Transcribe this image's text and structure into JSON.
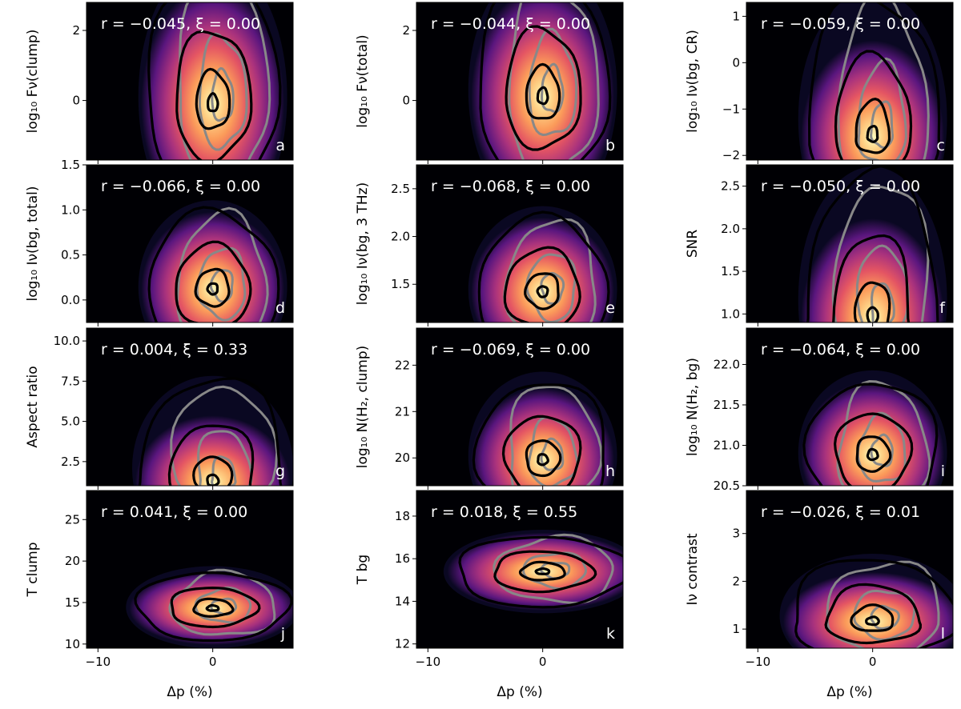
{
  "chart_data": [
    {
      "panel": "a",
      "type": "heatmap",
      "ylabel": "log₁₀ Fν(clump)",
      "stat": "r = −0.045, ξ = 0.00",
      "r": -0.045,
      "xi": 0.0,
      "xlim": [
        -11,
        7
      ],
      "ylim": [
        -1.7,
        2.8
      ],
      "yticks": [
        2,
        0
      ],
      "ytick_labels": [
        "2",
        "0"
      ],
      "peak": [
        0,
        -0.1
      ],
      "spread": [
        2.4,
        1.3
      ],
      "skew": 0.2
    },
    {
      "panel": "b",
      "type": "heatmap",
      "ylabel": "log₁₀ Fν(total)",
      "stat": "r = −0.044, ξ = 0.00",
      "r": -0.044,
      "xi": 0.0,
      "xlim": [
        -11,
        7
      ],
      "ylim": [
        -1.7,
        2.8
      ],
      "yticks": [
        2,
        0
      ],
      "ytick_labels": [
        "2",
        "0"
      ],
      "peak": [
        0,
        0.1
      ],
      "spread": [
        2.4,
        1.2
      ],
      "skew": 0.2
    },
    {
      "panel": "c",
      "type": "heatmap",
      "ylabel": "log₁₀ Iν(bg, CR)",
      "stat": "r = −0.059, ξ = 0.00",
      "r": -0.059,
      "xi": 0.0,
      "xlim": [
        -11,
        7
      ],
      "ylim": [
        -2.1,
        1.3
      ],
      "yticks": [
        1,
        0,
        -1,
        -2
      ],
      "ytick_labels": [
        "1",
        "0",
        "−1",
        "−2"
      ],
      "peak": [
        0,
        -1.6
      ],
      "spread": [
        2.4,
        0.8
      ],
      "skew": 0.6
    },
    {
      "panel": "d",
      "type": "heatmap",
      "ylabel": "log₁₀ Iν(bg, total)",
      "stat": "r = −0.066, ξ = 0.00",
      "r": -0.066,
      "xi": 0.0,
      "xlim": [
        -11,
        7
      ],
      "ylim": [
        -0.25,
        1.5
      ],
      "yticks": [
        1.5,
        1.0,
        0.5,
        0.0
      ],
      "ytick_labels": [
        "1.5",
        "1.0",
        "0.5",
        "0.0"
      ],
      "peak": [
        0,
        0.12
      ],
      "spread": [
        2.4,
        0.33
      ],
      "skew": 0.1
    },
    {
      "panel": "e",
      "type": "heatmap",
      "ylabel": "log₁₀ Iν(bg, 3 THz)",
      "stat": "r = −0.068, ξ = 0.00",
      "r": -0.068,
      "xi": 0.0,
      "xlim": [
        -11,
        7
      ],
      "ylim": [
        1.1,
        2.75
      ],
      "yticks": [
        2.5,
        2.0,
        1.5
      ],
      "ytick_labels": [
        "2.5",
        "2.0",
        "1.5"
      ],
      "peak": [
        0,
        1.42
      ],
      "spread": [
        2.4,
        0.3
      ],
      "skew": 0.1
    },
    {
      "panel": "f",
      "type": "heatmap",
      "ylabel": "SNR",
      "stat": "r = −0.050, ξ = 0.00",
      "r": -0.05,
      "xi": 0.0,
      "xlim": [
        -11,
        7
      ],
      "ylim": [
        0.9,
        2.75
      ],
      "yticks": [
        2.5,
        2.0,
        1.5,
        1.0
      ],
      "ytick_labels": [
        "2.5",
        "2.0",
        "1.5",
        "1.0"
      ],
      "peak": [
        0,
        0.95
      ],
      "spread": [
        2.4,
        0.45
      ],
      "skew": 0.6
    },
    {
      "panel": "g",
      "type": "heatmap",
      "ylabel": "Aspect ratio",
      "stat": "r = 0.004, ξ = 0.33",
      "r": 0.004,
      "xi": 0.33,
      "xlim": [
        -11,
        7
      ],
      "ylim": [
        1.0,
        10.8
      ],
      "yticks": [
        10.0,
        7.5,
        5.0,
        2.5
      ],
      "ytick_labels": [
        "10.0",
        "7.5",
        "5.0",
        "2.5"
      ],
      "peak": [
        0,
        1.2
      ],
      "spread": [
        2.6,
        1.6
      ],
      "skew": 0.7
    },
    {
      "panel": "h",
      "type": "heatmap",
      "ylabel": "log₁₀ N(H₂, clump)",
      "stat": "r = −0.069, ξ = 0.00",
      "r": -0.069,
      "xi": 0.0,
      "xlim": [
        -11,
        7
      ],
      "ylim": [
        19.4,
        22.8
      ],
      "yticks": [
        22,
        21,
        20
      ],
      "ytick_labels": [
        "22",
        "21",
        "20"
      ],
      "peak": [
        0,
        19.95
      ],
      "spread": [
        2.4,
        0.6
      ],
      "skew": 0.2
    },
    {
      "panel": "i",
      "type": "heatmap",
      "ylabel": "log₁₀ N(H₂, bg)",
      "stat": "r = −0.064, ξ = 0.00",
      "r": -0.064,
      "xi": 0.0,
      "xlim": [
        -11,
        7
      ],
      "ylim": [
        20.5,
        22.45
      ],
      "yticks": [
        22.0,
        21.5,
        21.0,
        20.5
      ],
      "ytick_labels": [
        "22.0",
        "21.5",
        "21.0",
        "20.5"
      ],
      "peak": [
        0,
        20.88
      ],
      "spread": [
        2.4,
        0.35
      ],
      "skew": 0.1
    },
    {
      "panel": "j",
      "type": "heatmap",
      "ylabel": "T clump",
      "stat": "r = 0.041, ξ = 0.00",
      "r": 0.041,
      "xi": 0.0,
      "xlim": [
        -11,
        7
      ],
      "ylim": [
        9.5,
        28.5
      ],
      "yticks": [
        25,
        20,
        15,
        10
      ],
      "ytick_labels": [
        "25",
        "20",
        "15",
        "10"
      ],
      "peak": [
        0,
        14.3
      ],
      "spread": [
        2.8,
        1.7
      ],
      "skew": 0.1
    },
    {
      "panel": "k",
      "type": "heatmap",
      "ylabel": "T bg",
      "stat": "r = 0.018, ξ = 0.55",
      "r": 0.018,
      "xi": 0.55,
      "xlim": [
        -11,
        7
      ],
      "ylim": [
        11.8,
        19.2
      ],
      "yticks": [
        18,
        16,
        14,
        12
      ],
      "ytick_labels": [
        "18",
        "16",
        "14",
        "12"
      ],
      "peak": [
        0,
        15.4
      ],
      "spread": [
        3.2,
        0.7
      ],
      "skew": 0.0
    },
    {
      "panel": "l",
      "type": "heatmap",
      "ylabel": "Iν contrast",
      "stat": "r = −0.026, ξ = 0.01",
      "r": -0.026,
      "xi": 0.01,
      "xlim": [
        -11,
        7
      ],
      "ylim": [
        0.6,
        3.9
      ],
      "yticks": [
        3,
        2,
        1
      ],
      "ytick_labels": [
        "3",
        "2",
        "1"
      ],
      "peak": [
        0,
        1.15
      ],
      "spread": [
        3.0,
        0.4
      ],
      "skew": 0.4
    }
  ],
  "xaxis": {
    "label": "Δp (%)",
    "ticks": [
      -10,
      0
    ],
    "tick_labels": [
      "−10",
      "0"
    ]
  }
}
